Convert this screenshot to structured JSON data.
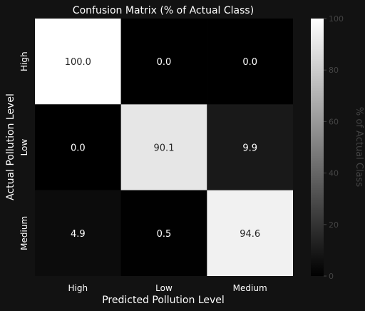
{
  "chart_data": {
    "type": "heatmap",
    "title": "Confusion Matrix (% of Actual Class)",
    "xlabel": "Predicted Pollution Level",
    "ylabel": "Actual Pollution Level",
    "x_categories": [
      "High",
      "Low",
      "Medium"
    ],
    "y_categories": [
      "High",
      "Low",
      "Medium"
    ],
    "values": [
      [
        100.0,
        0.0,
        0.0
      ],
      [
        0.0,
        90.1,
        9.9
      ],
      [
        4.9,
        0.5,
        94.6
      ]
    ],
    "colorbar": {
      "label": "% of Actual Class",
      "range": [
        0,
        100
      ],
      "ticks": [
        0,
        20,
        40,
        60,
        80,
        100
      ],
      "colormap": "gray"
    },
    "colors": {
      "background": "#121212",
      "text": "#ffffff",
      "colorbar_text": "#444444"
    }
  }
}
